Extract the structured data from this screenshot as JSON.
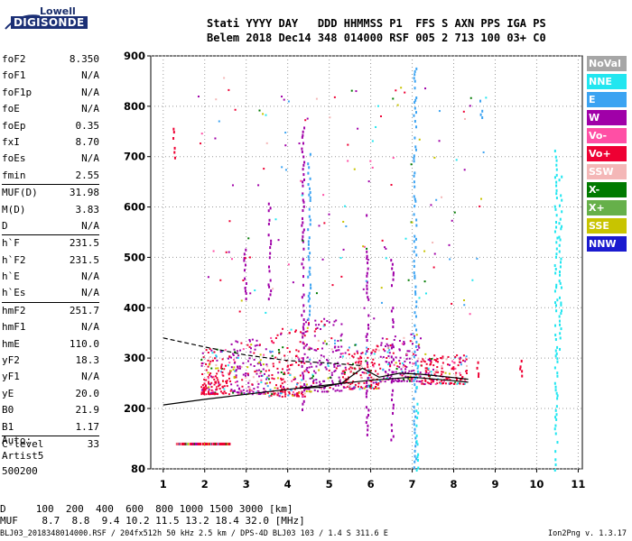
{
  "logo": {
    "line1": "Lowell",
    "line2": "DIGISONDE"
  },
  "header": {
    "row1": "Stati YYYY DAY   DDD HHMMSS P1  FFS S AXN PPS IGA PS",
    "row2": "Belem 2018 Dec14 348 014000 RSF 005 2 713 100 03+ C0"
  },
  "params": [
    {
      "k": "foF2",
      "v": "8.350"
    },
    {
      "k": "foF1",
      "v": "N/A"
    },
    {
      "k": "foF1p",
      "v": "N/A"
    },
    {
      "k": "foE",
      "v": "N/A"
    },
    {
      "k": "foEp",
      "v": "0.35"
    },
    {
      "k": "fxI",
      "v": "8.70"
    },
    {
      "k": "foEs",
      "v": "N/A"
    },
    {
      "k": "fmin",
      "v": "2.55"
    },
    {
      "k": "MUF(D)",
      "v": "31.98"
    },
    {
      "k": "M(D)",
      "v": "3.83"
    },
    {
      "k": "D",
      "v": "N/A"
    },
    {
      "k": "h`F",
      "v": "231.5"
    },
    {
      "k": "h`F2",
      "v": "231.5"
    },
    {
      "k": "h`E",
      "v": "N/A"
    },
    {
      "k": "h`Es",
      "v": "N/A"
    },
    {
      "k": "hmF2",
      "v": "251.7"
    },
    {
      "k": "hmF1",
      "v": "N/A"
    },
    {
      "k": "hmE",
      "v": "110.0"
    },
    {
      "k": "yF2",
      "v": "18.3"
    },
    {
      "k": "yF1",
      "v": "N/A"
    },
    {
      "k": "yE",
      "v": "20.0"
    },
    {
      "k": "B0",
      "v": "21.9"
    },
    {
      "k": "B1",
      "v": "1.17"
    },
    {
      "k": "C-level",
      "v": "33"
    }
  ],
  "auto": {
    "line1": "Auto:",
    "line2": "Artist5",
    "line3": "500200"
  },
  "legend": [
    {
      "label": "NoVal",
      "color": "#a6a6a6"
    },
    {
      "label": "NNE",
      "color": "#22e6f0"
    },
    {
      "label": "E",
      "color": "#3ba3f2"
    },
    {
      "label": "W",
      "color": "#a000a8"
    },
    {
      "label": "Vo-",
      "color": "#ff4fa5"
    },
    {
      "label": "Vo+",
      "color": "#ee0033"
    },
    {
      "label": "SSW",
      "color": "#f4b7b7"
    },
    {
      "label": "X-",
      "color": "#007a00"
    },
    {
      "label": "X+",
      "color": "#66b04a"
    },
    {
      "label": "SSE",
      "color": "#c8c400"
    },
    {
      "label": "NNW",
      "color": "#1a1acf"
    }
  ],
  "bottom": {
    "row1": "D     100  200  400  600  800 1000 1500 3000 [km]",
    "row2": "MUF    8.7  8.8  9.4 10.2 11.5 13.2 18.4 32.0 [MHz]"
  },
  "footer": "BLJ03_2018348014000.RSF / 204fx512h 50 kHz 2.5 km / DPS-4D BLJ03 103 / 1.4 S 311.6 E",
  "version": "Ion2Png v. 1.3.17",
  "chart_data": {
    "type": "scatter",
    "xlim": [
      0.7,
      11.1
    ],
    "ylim": [
      80,
      900
    ],
    "x_ticks": [
      1,
      2,
      3,
      4,
      5,
      6,
      7,
      8,
      9,
      10,
      11
    ],
    "y_ticks": [
      80,
      200,
      300,
      400,
      500,
      600,
      700,
      800,
      900
    ],
    "grid": true,
    "traces": [
      {
        "name": "foF2 trace",
        "x": [
          1.0,
          2.0,
          3.0,
          4.0,
          5.0,
          6.0,
          7.0,
          8.0,
          8.35
        ],
        "y": [
          207,
          218,
          228,
          238,
          247,
          256,
          262,
          255,
          252
        ]
      },
      {
        "name": "profile",
        "x": [
          4.2,
          4.8,
          5.3,
          5.8,
          6.2,
          6.7,
          7.2,
          7.8,
          8.35
        ],
        "y": [
          240,
          242,
          250,
          280,
          262,
          270,
          268,
          263,
          258
        ]
      },
      {
        "name": "dashed",
        "x": [
          1.0,
          2.0,
          3.0,
          4.0,
          5.0,
          5.8
        ],
        "y": [
          340,
          322,
          306,
          295,
          290,
          285
        ]
      }
    ],
    "echo_clusters": [
      {
        "x": [
          1.9,
          2.6
        ],
        "y": [
          230,
          320
        ],
        "color": "#ee0033"
      },
      {
        "x": [
          2.6,
          3.5
        ],
        "y": [
          230,
          340
        ],
        "color": "#a000a8"
      },
      {
        "x": [
          3.5,
          4.4
        ],
        "y": [
          225,
          360
        ],
        "color": "#ee0033"
      },
      {
        "x": [
          4.4,
          5.3
        ],
        "y": [
          235,
          380
        ],
        "color": "#a000a8"
      },
      {
        "x": [
          5.3,
          6.2
        ],
        "y": [
          240,
          330
        ],
        "color": "#ee0033"
      },
      {
        "x": [
          6.2,
          7.2
        ],
        "y": [
          255,
          350
        ],
        "color": "#a000a8"
      },
      {
        "x": [
          7.2,
          8.3
        ],
        "y": [
          250,
          310
        ],
        "color": "#ee0033"
      }
    ]
  }
}
